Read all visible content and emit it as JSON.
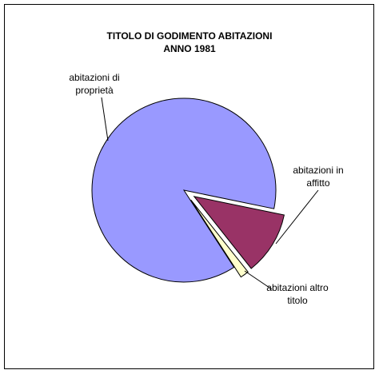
{
  "chart_data": {
    "type": "pie",
    "title": "TITOLO DI GODIMENTO ABITAZIONI",
    "subtitle": "ANNO 1981",
    "categories": [
      "abitazioni di proprietà",
      "abitazioni in affitto",
      "abitazioni altro titolo"
    ],
    "values": [
      87.4,
      11.1,
      1.5
    ],
    "colors": [
      "#9999ff",
      "#993366",
      "#ffffcc"
    ],
    "exploded": [
      false,
      true,
      true
    ]
  }
}
